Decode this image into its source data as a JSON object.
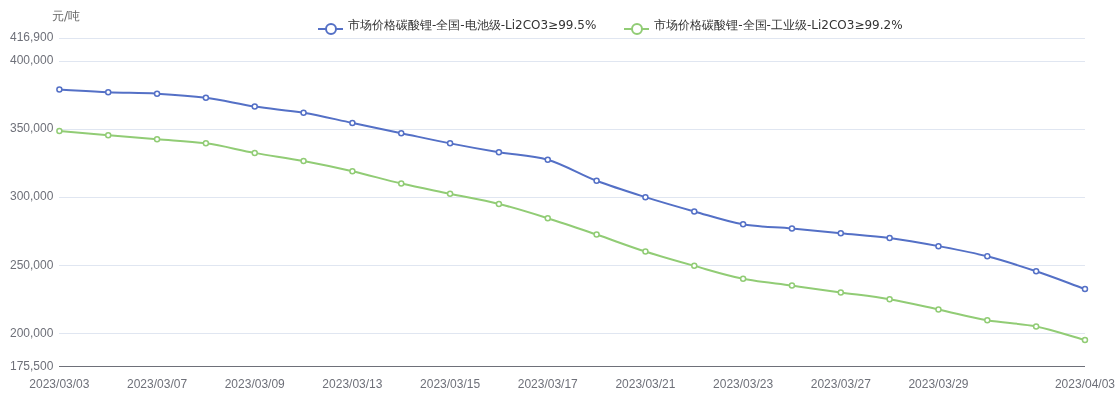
{
  "chart_data": {
    "type": "line",
    "ylabel": "元/吨",
    "categories": [
      "2023/03/03",
      null,
      "2023/03/07",
      null,
      "2023/03/09",
      null,
      "2023/03/13",
      null,
      "2023/03/15",
      null,
      "2023/03/17",
      null,
      "2023/03/21",
      null,
      "2023/03/23",
      null,
      "2023/03/27",
      null,
      "2023/03/29",
      null,
      null,
      "2023/04/03"
    ],
    "series": [
      {
        "name": "市场价格碳酸锂-全国-电池级-Li2CO3≥99.5%",
        "color": "#5470c6",
        "values": [
          379000,
          377000,
          376000,
          373000,
          366500,
          362000,
          354500,
          347000,
          339500,
          333000,
          327500,
          312000,
          300000,
          289500,
          280000,
          277000,
          273500,
          270000,
          264000,
          256500,
          245500,
          232500
        ]
      },
      {
        "name": "市场价格碳酸锂-全国-工业级-Li2CO3≥99.2%",
        "color": "#91cc75",
        "values": [
          348500,
          345500,
          342500,
          339500,
          332500,
          326500,
          319000,
          310000,
          302500,
          295000,
          284500,
          272500,
          260000,
          249500,
          240000,
          235000,
          230000,
          225000,
          217500,
          209500,
          205000,
          195000
        ]
      }
    ],
    "ylim": [
      175500,
      416900
    ],
    "yticks": [
      {
        "value": 175500,
        "label": "175,500"
      },
      {
        "value": 200000,
        "label": "200,000"
      },
      {
        "value": 250000,
        "label": "250,000"
      },
      {
        "value": 300000,
        "label": "300,000"
      },
      {
        "value": 350000,
        "label": "350,000"
      },
      {
        "value": 400000,
        "label": "400,000"
      },
      {
        "value": 416900,
        "label": "416,900"
      }
    ],
    "grid": "y",
    "legend": "top",
    "marker": "circle",
    "line_style": "solid"
  }
}
